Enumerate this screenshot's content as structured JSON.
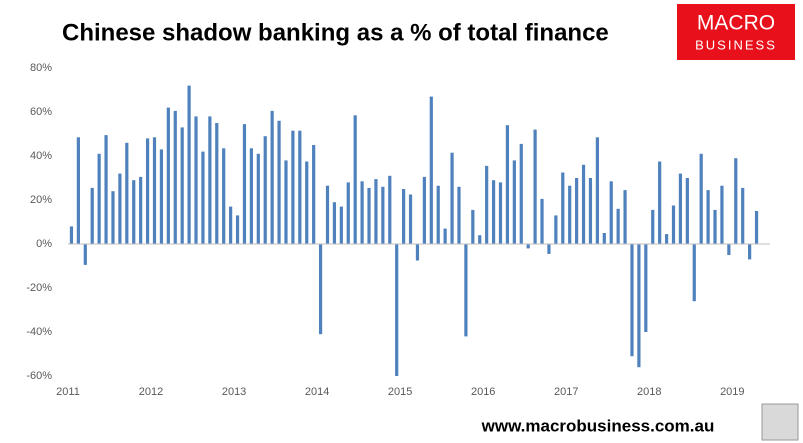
{
  "chart_data": {
    "type": "bar",
    "title": "Chinese shadow banking as a % of total finance",
    "categories": [
      "2011",
      null,
      null,
      null,
      null,
      null,
      null,
      null,
      null,
      null,
      null,
      null,
      "2012",
      null,
      null,
      null,
      null,
      null,
      null,
      null,
      null,
      null,
      null,
      null,
      "2013",
      null,
      null,
      null,
      null,
      null,
      null,
      null,
      null,
      null,
      null,
      null,
      "2014",
      null,
      null,
      null,
      null,
      null,
      null,
      null,
      null,
      null,
      null,
      null,
      "2015",
      null,
      null,
      null,
      null,
      null,
      null,
      null,
      null,
      null,
      null,
      null,
      "2016",
      null,
      null,
      null,
      null,
      null,
      null,
      null,
      null,
      null,
      null,
      null,
      "2017",
      null,
      null,
      null,
      null,
      null,
      null,
      null,
      null,
      null,
      null,
      null,
      "2018",
      null,
      null,
      null,
      null,
      null,
      null,
      null,
      null,
      null,
      null,
      null,
      "2019",
      null,
      null,
      null
    ],
    "values": [
      8,
      48.5,
      -9.5,
      25.5,
      41,
      49.5,
      24,
      32,
      46,
      29,
      30.5,
      48,
      48.5,
      43,
      62,
      60.5,
      53,
      72,
      58,
      42,
      58,
      55,
      43.5,
      17,
      13,
      54.5,
      43.5,
      41,
      49,
      60.5,
      56,
      38,
      51.5,
      51.5,
      37.5,
      45,
      -41,
      26.5,
      19,
      17,
      28,
      58.5,
      28.5,
      25.5,
      29.5,
      26,
      31,
      -60,
      25,
      22.5,
      -7.5,
      30.5,
      67,
      26.5,
      7,
      41.5,
      26,
      -42,
      15.5,
      4,
      35.5,
      29,
      28,
      54,
      38,
      45.5,
      -2,
      52,
      20.5,
      -4.5,
      13,
      32.5,
      26.5,
      30,
      36,
      30,
      48.5,
      5,
      28.5,
      16,
      24.5,
      -51,
      -56,
      -40,
      15.5,
      37.5,
      4.5,
      17.5,
      32,
      30,
      -26,
      41,
      24.5,
      15.5,
      26.5,
      -5,
      39,
      25.5,
      -7,
      15
    ],
    "color": "#4f81bd",
    "ylim": [
      -60,
      80
    ],
    "yticks": [
      {
        "value": -60,
        "label": "-60%"
      },
      {
        "value": -40,
        "label": "-40%"
      },
      {
        "value": -20,
        "label": "-20%"
      },
      {
        "value": 0,
        "label": "0%"
      },
      {
        "value": 20,
        "label": "20%"
      },
      {
        "value": 40,
        "label": "40%"
      },
      {
        "value": 60,
        "label": "60%"
      },
      {
        "value": 80,
        "label": "80%"
      }
    ],
    "grid": false
  },
  "logo": {
    "line1": "MACRO",
    "line2": "BUSINESS"
  },
  "footer": "www.macrobusiness.com.au"
}
